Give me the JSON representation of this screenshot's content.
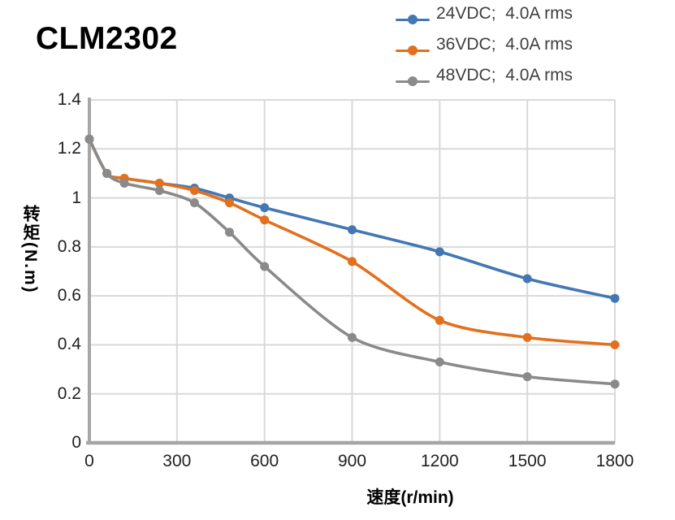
{
  "page_title": "CLM2302",
  "legend": {
    "position": "top-right",
    "items": [
      {
        "label": "24VDC;  4.0A rms",
        "color": "#4377B4"
      },
      {
        "label": "36VDC;  4.0A rms",
        "color": "#E2701D"
      },
      {
        "label": "48VDC;  4.0A rms",
        "color": "#8A8A8A"
      }
    ]
  },
  "chart_data": {
    "type": "line",
    "title": "CLM2302",
    "xlabel": "速度(r/min)",
    "ylabel": "转矩(N.m)",
    "xlim": [
      0,
      1800
    ],
    "ylim": [
      0,
      1.4
    ],
    "xticks": [
      "0",
      "300",
      "600",
      "900",
      "1200",
      "1500",
      "1800"
    ],
    "yticks": [
      "1.4",
      "1.2",
      "1",
      "0.8",
      "0.6",
      "0.4",
      "0.2",
      "0"
    ],
    "grid": true,
    "smoothed_lines": true,
    "markers": "circle",
    "legend_position": "top-right",
    "x": [
      0,
      60,
      120,
      240,
      360,
      480,
      600,
      900,
      1200,
      1500,
      1800
    ],
    "series": [
      {
        "name": "24VDC;  4.0A rms",
        "color": "#4377B4",
        "values": [
          1.24,
          1.1,
          1.08,
          1.06,
          1.04,
          1.0,
          0.96,
          0.87,
          0.78,
          0.67,
          0.59
        ]
      },
      {
        "name": "36VDC;  4.0A rms",
        "color": "#E2701D",
        "values": [
          1.24,
          1.1,
          1.08,
          1.06,
          1.03,
          0.98,
          0.91,
          0.74,
          0.5,
          0.43,
          0.4
        ]
      },
      {
        "name": "48VDC;  4.0A rms",
        "color": "#8A8A8A",
        "values": [
          1.24,
          1.1,
          1.06,
          1.03,
          0.98,
          0.86,
          0.72,
          0.43,
          0.33,
          0.27,
          0.24
        ]
      }
    ],
    "colors": {
      "grid": "#D9D9D9",
      "axis": "#A6A6A6",
      "tick_text": "#212121",
      "legend_text": "#3F3F3F",
      "title_text": "#000000",
      "background": "#FFFFFF"
    }
  }
}
